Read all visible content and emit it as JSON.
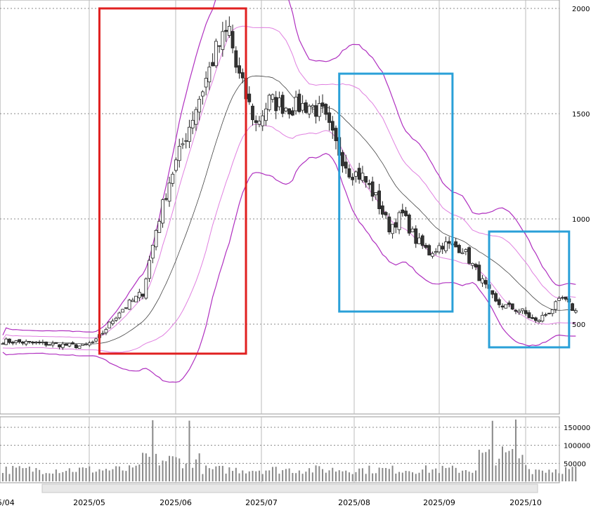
{
  "chart_data": [
    {
      "type": "candlestick",
      "x_ticks": [
        "2025/05",
        "2025/06",
        "2025/07",
        "2025/08",
        "2025/09",
        "2025/10"
      ],
      "x_edge_label": "5/04",
      "y_ticks": [
        "2000",
        "1500",
        "1000",
        "500"
      ],
      "ylim": [
        250,
        2030
      ],
      "grid": true,
      "colors": {
        "up": "#ffffff",
        "down": "#333333",
        "ma": "#444444",
        "band_outer": "#b030c0",
        "band_inner": "#e080e0"
      },
      "annotations": [
        {
          "shape": "rectangle",
          "color": "#e02020",
          "x_from_index": 29,
          "x_to_index": 73,
          "y_from": 2000,
          "y_to": 360
        },
        {
          "shape": "rectangle",
          "color": "#2aa0d8",
          "x_from_index": 101,
          "x_to_index": 135,
          "y_from": 1690,
          "y_to": 560
        },
        {
          "shape": "rectangle",
          "color": "#2aa0d8",
          "x_from_index": 146,
          "x_to_index": 170,
          "y_from": 940,
          "y_to": 390
        }
      ]
    },
    {
      "type": "bar",
      "y_ticks": [
        "150000",
        "100000",
        "50000"
      ],
      "ylim": [
        0,
        175000
      ]
    }
  ]
}
